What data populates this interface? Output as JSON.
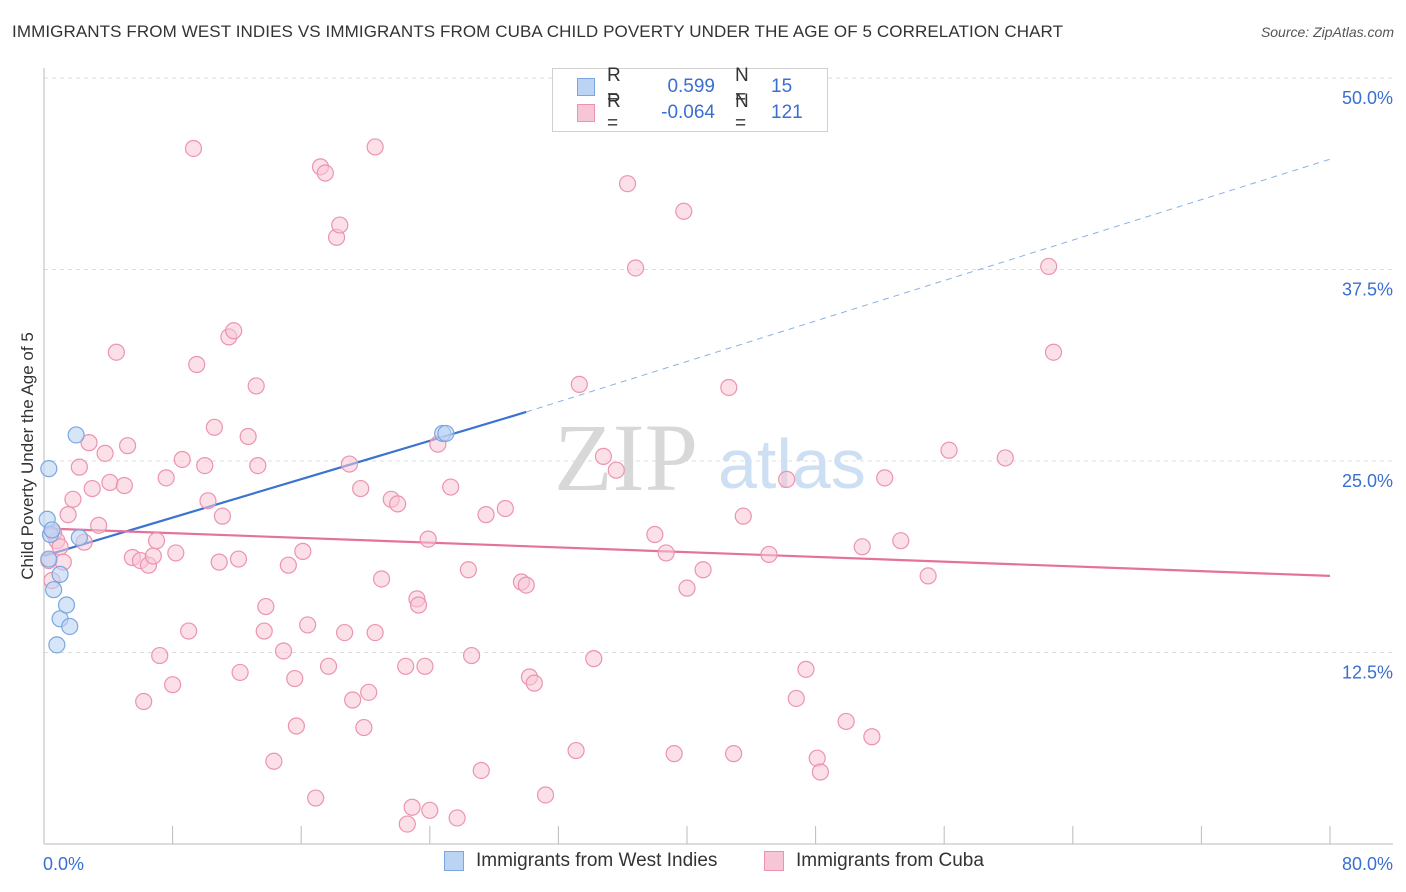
{
  "title": "IMMIGRANTS FROM WEST INDIES VS IMMIGRANTS FROM CUBA CHILD POVERTY UNDER THE AGE OF 5 CORRELATION CHART",
  "source": "Source: ZipAtlas.com",
  "watermark": {
    "zip": "ZIP",
    "atlas": "atlas"
  },
  "colors": {
    "blue_fill": "#bcd4f3",
    "blue_stroke": "#7ba6e0",
    "blue_line": "#3a74d0",
    "pink_fill": "#f7c6d6",
    "pink_stroke": "#ec93b1",
    "pink_line": "#e4729b",
    "value_text": "#3a6fd0",
    "grid": "#dddddd"
  },
  "legend_top": [
    {
      "r_label": "R =",
      "r_value": "0.599",
      "n_label": "N =",
      "n_value": "15",
      "series": "blue"
    },
    {
      "r_label": "R =",
      "r_value": "-0.064",
      "n_label": "N =",
      "n_value": "121",
      "series": "pink"
    }
  ],
  "legend_bottom": [
    {
      "label": "Immigrants from West Indies",
      "series": "blue"
    },
    {
      "label": "Immigrants from Cuba",
      "series": "pink"
    }
  ],
  "chart_data": {
    "type": "scatter",
    "title": "IMMIGRANTS FROM WEST INDIES VS IMMIGRANTS FROM CUBA CHILD POVERTY UNDER THE AGE OF 5 CORRELATION CHART",
    "xlabel": "",
    "ylabel": "Child Poverty Under the Age of 5",
    "xlim": [
      0,
      80
    ],
    "ylim": [
      0,
      50
    ],
    "x_tick_labels": [
      "0.0%",
      "80.0%"
    ],
    "y_ticks": [
      12.5,
      25,
      37.5,
      50
    ],
    "y_tick_labels": [
      "12.5%",
      "25.0%",
      "37.5%",
      "50.0%"
    ],
    "grid": true,
    "series": [
      {
        "name": "Immigrants from West Indies",
        "color": "blue",
        "R": 0.599,
        "N": 15,
        "trend": {
          "x0": 0,
          "y0": 18.8,
          "x1": 30,
          "y1": 28.2,
          "dash_x1": 80,
          "dash_y1": 44.7
        },
        "points": [
          [
            0.2,
            21.2
          ],
          [
            0.3,
            24.5
          ],
          [
            0.4,
            20.2
          ],
          [
            0.5,
            20.5
          ],
          [
            0.6,
            16.6
          ],
          [
            0.8,
            13.0
          ],
          [
            1.0,
            17.6
          ],
          [
            1.0,
            14.7
          ],
          [
            1.4,
            15.6
          ],
          [
            1.6,
            14.2
          ],
          [
            2.0,
            26.7
          ],
          [
            2.2,
            20.0
          ],
          [
            24.8,
            26.8
          ],
          [
            25.0,
            26.8
          ],
          [
            0.3,
            18.6
          ]
        ]
      },
      {
        "name": "Immigrants from Cuba",
        "color": "pink",
        "R": -0.064,
        "N": 121,
        "trend": {
          "x0": 0,
          "y0": 20.6,
          "x1": 80,
          "y1": 17.5
        },
        "points": [
          [
            0.3,
            18.5
          ],
          [
            0.5,
            17.2
          ],
          [
            0.6,
            20.3
          ],
          [
            0.8,
            19.8
          ],
          [
            1.0,
            19.4
          ],
          [
            1.2,
            18.4
          ],
          [
            1.5,
            21.5
          ],
          [
            1.8,
            22.5
          ],
          [
            2.2,
            24.6
          ],
          [
            2.5,
            19.7
          ],
          [
            2.8,
            26.2
          ],
          [
            3.0,
            23.2
          ],
          [
            3.4,
            20.8
          ],
          [
            3.8,
            25.5
          ],
          [
            4.1,
            23.6
          ],
          [
            4.5,
            32.1
          ],
          [
            5.0,
            23.4
          ],
          [
            5.2,
            26.0
          ],
          [
            5.5,
            18.7
          ],
          [
            6.0,
            18.5
          ],
          [
            6.2,
            9.3
          ],
          [
            6.5,
            18.2
          ],
          [
            6.8,
            18.8
          ],
          [
            7.0,
            19.8
          ],
          [
            7.2,
            12.3
          ],
          [
            7.6,
            23.9
          ],
          [
            8.0,
            10.4
          ],
          [
            8.2,
            19.0
          ],
          [
            8.6,
            25.1
          ],
          [
            9.0,
            13.9
          ],
          [
            9.3,
            45.4
          ],
          [
            9.5,
            31.3
          ],
          [
            10.0,
            24.7
          ],
          [
            10.2,
            22.4
          ],
          [
            10.6,
            27.2
          ],
          [
            10.9,
            18.4
          ],
          [
            11.1,
            21.4
          ],
          [
            11.5,
            33.1
          ],
          [
            11.8,
            33.5
          ],
          [
            12.1,
            18.6
          ],
          [
            12.2,
            11.2
          ],
          [
            12.7,
            26.6
          ],
          [
            13.2,
            29.9
          ],
          [
            13.3,
            24.7
          ],
          [
            13.7,
            13.9
          ],
          [
            13.8,
            15.5
          ],
          [
            14.3,
            5.4
          ],
          [
            14.9,
            12.6
          ],
          [
            15.2,
            18.2
          ],
          [
            15.6,
            10.8
          ],
          [
            15.7,
            7.7
          ],
          [
            16.1,
            19.1
          ],
          [
            16.4,
            14.3
          ],
          [
            16.9,
            3.0
          ],
          [
            17.2,
            44.2
          ],
          [
            17.5,
            43.8
          ],
          [
            17.7,
            11.6
          ],
          [
            18.2,
            39.6
          ],
          [
            18.4,
            40.4
          ],
          [
            18.7,
            13.8
          ],
          [
            19.0,
            24.8
          ],
          [
            19.2,
            9.4
          ],
          [
            19.7,
            23.2
          ],
          [
            19.9,
            7.6
          ],
          [
            20.2,
            9.9
          ],
          [
            20.6,
            45.5
          ],
          [
            20.6,
            13.8
          ],
          [
            21.0,
            17.3
          ],
          [
            21.6,
            22.5
          ],
          [
            22.0,
            22.2
          ],
          [
            22.5,
            11.6
          ],
          [
            22.6,
            1.3
          ],
          [
            22.9,
            2.4
          ],
          [
            23.2,
            16.0
          ],
          [
            23.3,
            15.6
          ],
          [
            23.7,
            11.6
          ],
          [
            23.9,
            19.9
          ],
          [
            24.0,
            2.2
          ],
          [
            24.5,
            26.1
          ],
          [
            25.3,
            23.3
          ],
          [
            25.7,
            1.7
          ],
          [
            26.4,
            17.9
          ],
          [
            26.6,
            12.3
          ],
          [
            27.2,
            4.8
          ],
          [
            27.5,
            21.5
          ],
          [
            28.7,
            21.9
          ],
          [
            29.7,
            17.1
          ],
          [
            30.0,
            16.9
          ],
          [
            30.2,
            10.9
          ],
          [
            30.5,
            10.5
          ],
          [
            31.2,
            3.2
          ],
          [
            33.1,
            6.1
          ],
          [
            33.3,
            30.0
          ],
          [
            34.2,
            12.1
          ],
          [
            34.8,
            25.3
          ],
          [
            35.6,
            24.4
          ],
          [
            36.3,
            43.1
          ],
          [
            36.8,
            37.6
          ],
          [
            38.0,
            20.2
          ],
          [
            38.7,
            19.0
          ],
          [
            39.2,
            5.9
          ],
          [
            39.8,
            41.3
          ],
          [
            40.0,
            16.7
          ],
          [
            41.0,
            17.9
          ],
          [
            42.6,
            29.8
          ],
          [
            42.9,
            5.9
          ],
          [
            43.5,
            21.4
          ],
          [
            45.1,
            18.9
          ],
          [
            46.2,
            23.8
          ],
          [
            46.8,
            9.5
          ],
          [
            47.4,
            11.4
          ],
          [
            48.1,
            5.6
          ],
          [
            48.3,
            4.7
          ],
          [
            49.9,
            8.0
          ],
          [
            50.9,
            19.4
          ],
          [
            51.5,
            7.0
          ],
          [
            52.3,
            23.9
          ],
          [
            53.3,
            19.8
          ],
          [
            55.0,
            17.5
          ],
          [
            56.3,
            25.7
          ],
          [
            59.8,
            25.2
          ],
          [
            62.5,
            37.7
          ],
          [
            62.8,
            32.1
          ]
        ]
      }
    ]
  }
}
